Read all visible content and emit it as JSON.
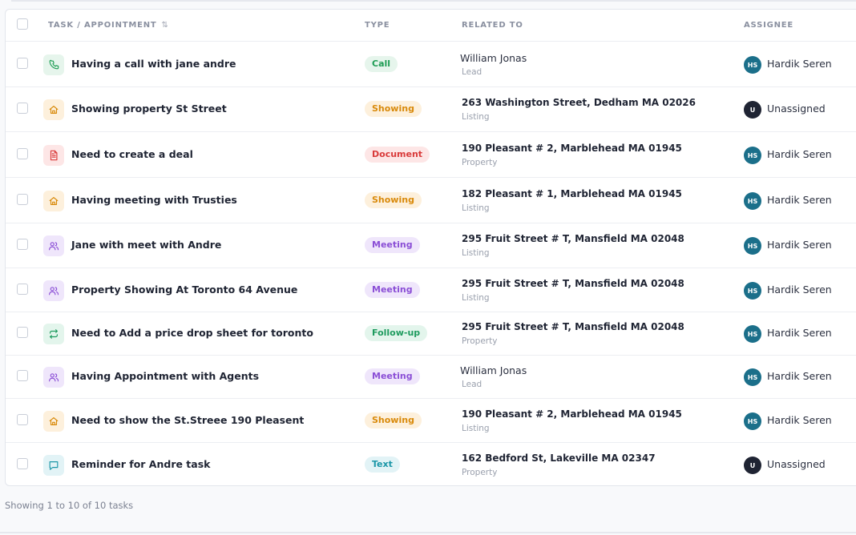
{
  "table": {
    "columns": {
      "task": "TASK / APPOINTMENT",
      "type": "TYPE",
      "related": "RELATED TO",
      "assignee": "ASSIGNEE"
    },
    "sort_icon": "sort-arrows-icon"
  },
  "type_styles": {
    "Call": {
      "bg": "#e6f5ec",
      "fg": "#1f9d55"
    },
    "Showing": {
      "bg": "#fdf0dc",
      "fg": "#d98a0b"
    },
    "Document": {
      "bg": "#fde6e6",
      "fg": "#d93a3a"
    },
    "Meeting": {
      "bg": "#efe6fb",
      "fg": "#8b4fd6"
    },
    "Follow-up": {
      "bg": "#e3f5ec",
      "fg": "#1e9b5e"
    },
    "Text": {
      "bg": "#e2f3f6",
      "fg": "#1c97a8"
    }
  },
  "rows": [
    {
      "task": "Having a call with jane andre",
      "icon": "phone-icon",
      "type": "Call",
      "related_title": "William Jonas",
      "related_sub": "Lead",
      "assignee_initials": "HS",
      "assignee": "Hardik Seren"
    },
    {
      "task": "Showing property St Street",
      "icon": "home-icon",
      "type": "Showing",
      "related_title": "263 Washington Street, Dedham MA 02026",
      "related_sub": "Listing",
      "assignee_initials": "U",
      "assignee": "Unassigned"
    },
    {
      "task": "Need to create a deal",
      "icon": "document-icon",
      "type": "Document",
      "related_title": "190 Pleasant # 2, Marblehead MA 01945",
      "related_sub": "Property",
      "assignee_initials": "HS",
      "assignee": "Hardik Seren"
    },
    {
      "task": "Having meeting with Trusties",
      "icon": "home-icon",
      "type": "Showing",
      "related_title": "182 Pleasant # 1, Marblehead MA 01945",
      "related_sub": "Listing",
      "assignee_initials": "HS",
      "assignee": "Hardik Seren"
    },
    {
      "task": "Jane with meet with Andre",
      "icon": "users-icon",
      "type": "Meeting",
      "related_title": "295 Fruit Street # T, Mansfield MA 02048",
      "related_sub": "Listing",
      "assignee_initials": "HS",
      "assignee": "Hardik Seren"
    },
    {
      "task": "Property Showing At Toronto 64 Avenue",
      "icon": "users-icon",
      "type": "Meeting",
      "related_title": "295 Fruit Street # T, Mansfield MA 02048",
      "related_sub": "Listing",
      "assignee_initials": "HS",
      "assignee": "Hardik Seren"
    },
    {
      "task": "Need to Add a price drop sheet for toronto",
      "icon": "repeat-icon",
      "type": "Follow-up",
      "related_title": "295 Fruit Street # T, Mansfield MA 02048",
      "related_sub": "Property",
      "assignee_initials": "HS",
      "assignee": "Hardik Seren"
    },
    {
      "task": "Having Appointment with Agents",
      "icon": "users-icon",
      "type": "Meeting",
      "related_title": "William Jonas",
      "related_sub": "Lead",
      "assignee_initials": "HS",
      "assignee": "Hardik Seren"
    },
    {
      "task": "Need to show the St.Streee 190 Pleasent",
      "icon": "home-icon",
      "type": "Showing",
      "related_title": "190 Pleasant # 2, Marblehead MA 01945",
      "related_sub": "Listing",
      "assignee_initials": "HS",
      "assignee": "Hardik Seren"
    },
    {
      "task": "Reminder for Andre task",
      "icon": "message-icon",
      "type": "Text",
      "related_title": "162 Bedford St, Lakeville MA 02347",
      "related_sub": "Property",
      "assignee_initials": "U",
      "assignee": "Unassigned"
    }
  ],
  "footer": {
    "summary": "Showing 1 to 10 of 10 tasks"
  }
}
